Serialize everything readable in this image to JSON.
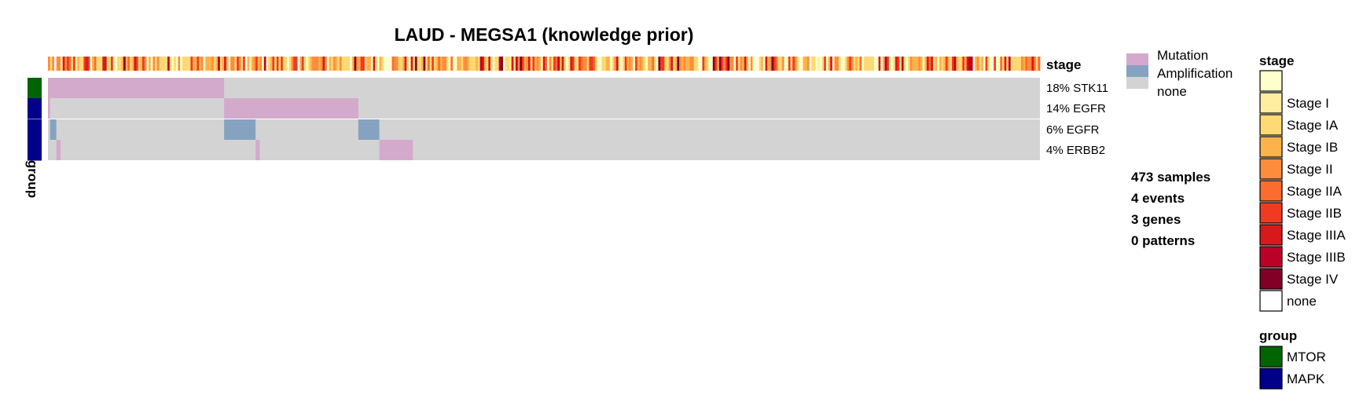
{
  "chart_data": {
    "type": "heatmap",
    "title": "LAUD - MEGSA1 (knowledge prior)",
    "n_samples": 473,
    "rows": [
      {
        "label": "18% STK11",
        "group": "MTOR"
      },
      {
        "label": "14% EGFR",
        "group": "MAPK"
      },
      {
        "label": "6% EGFR",
        "group": "MAPK"
      },
      {
        "label": "4% ERBB2",
        "group": "MAPK"
      }
    ],
    "blocks": [
      {
        "row": 0,
        "start": 0,
        "end": 84,
        "type": "Mutation"
      },
      {
        "row": 1,
        "start": 0,
        "end": 1,
        "type": "Mutation"
      },
      {
        "row": 1,
        "start": 84,
        "end": 148,
        "type": "Mutation"
      },
      {
        "row": 2,
        "start": 1,
        "end": 4,
        "type": "Amplification"
      },
      {
        "row": 2,
        "start": 84,
        "end": 99,
        "type": "Amplification"
      },
      {
        "row": 2,
        "start": 148,
        "end": 158,
        "type": "Amplification"
      },
      {
        "row": 3,
        "start": 4,
        "end": 6,
        "type": "Mutation"
      },
      {
        "row": 3,
        "start": 99,
        "end": 101,
        "type": "Mutation"
      },
      {
        "row": 3,
        "start": 158,
        "end": 174,
        "type": "Mutation"
      }
    ],
    "annotation_label": "stage",
    "group_axis_label": "group",
    "event_legend": [
      {
        "label": "Mutation",
        "color": "#d4aacc"
      },
      {
        "label": "Amplification",
        "color": "#85a3c0"
      },
      {
        "label": "none",
        "color": "#d3d3d3"
      }
    ],
    "stats": [
      "473 samples",
      "4 events",
      "3 genes",
      "0 patterns"
    ],
    "stage_legend_title": "stage",
    "stage_legend": [
      {
        "label": "",
        "color": "#ffffcc"
      },
      {
        "label": "Stage I",
        "color": "#ffeda0"
      },
      {
        "label": "Stage IA",
        "color": "#fed976"
      },
      {
        "label": "Stage IB",
        "color": "#feb24c"
      },
      {
        "label": "Stage II",
        "color": "#fd8d3c"
      },
      {
        "label": "Stage IIA",
        "color": "#fc6c2f"
      },
      {
        "label": "Stage IIB",
        "color": "#f03b20"
      },
      {
        "label": "Stage IIIA",
        "color": "#d7191c"
      },
      {
        "label": "Stage IIIB",
        "color": "#bd0026"
      },
      {
        "label": "Stage IV",
        "color": "#800026"
      },
      {
        "label": "none",
        "color": "#ffffff"
      }
    ],
    "group_legend_title": "group",
    "group_legend": [
      {
        "label": "MTOR",
        "color": "#006400"
      },
      {
        "label": "MAPK",
        "color": "#00008b"
      }
    ]
  }
}
